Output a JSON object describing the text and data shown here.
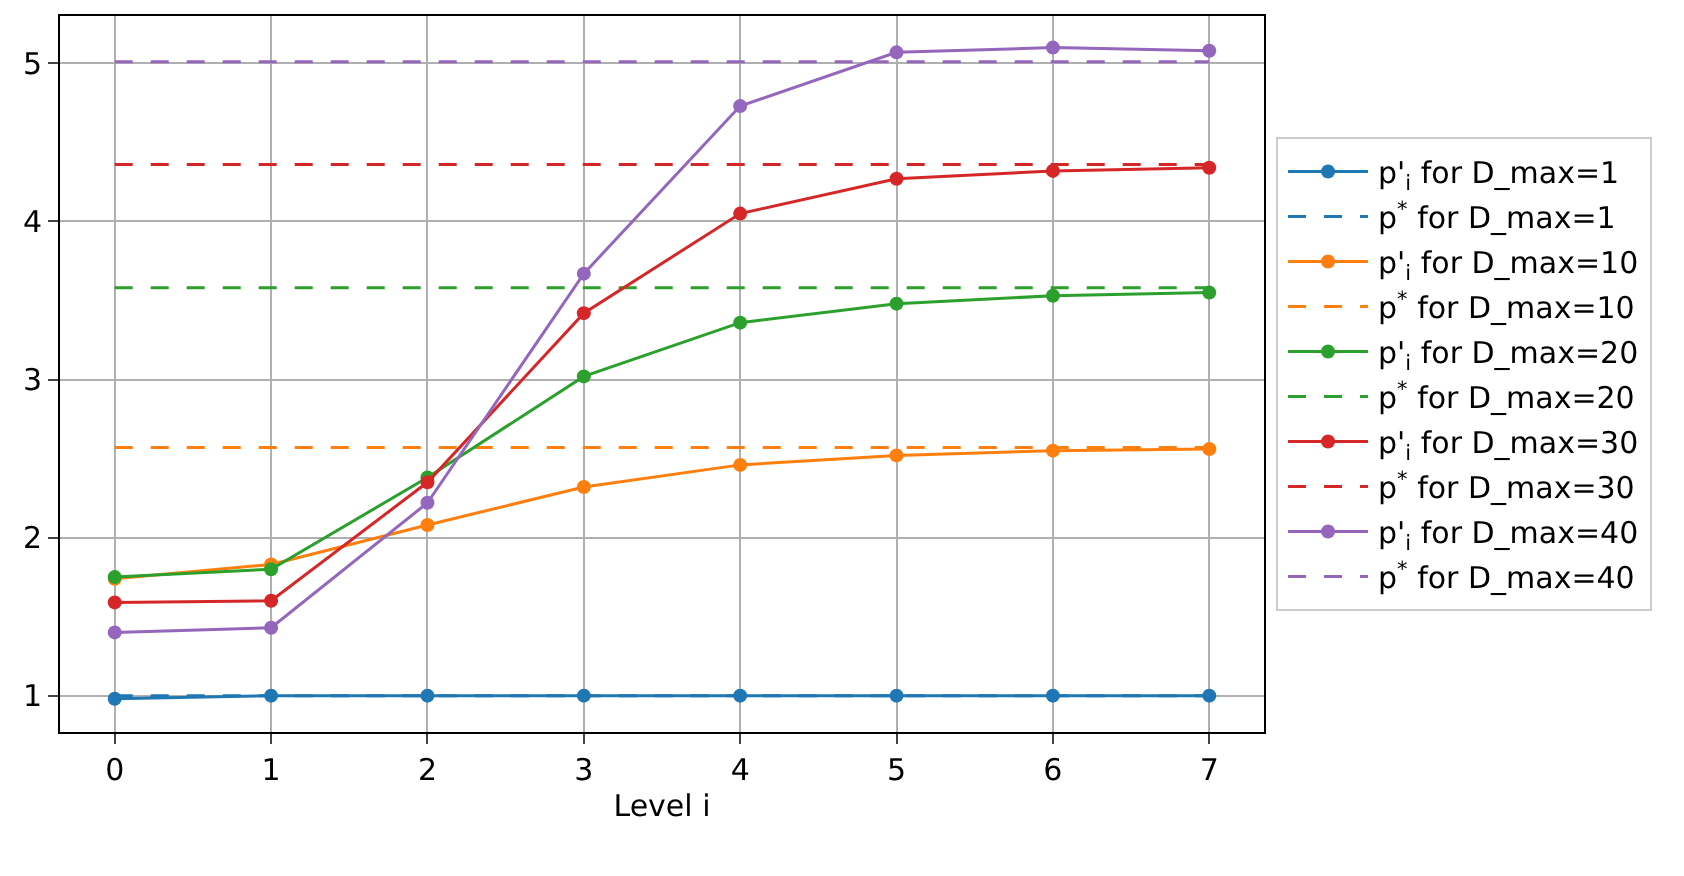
{
  "chart_data": {
    "type": "line",
    "xlabel": "Level i",
    "x": [
      0,
      1,
      2,
      3,
      4,
      5,
      6,
      7
    ],
    "xlim": [
      -0.35,
      7.35
    ],
    "xticks": [
      0,
      1,
      2,
      3,
      4,
      5,
      6,
      7
    ],
    "ylim": [
      0.77,
      5.3
    ],
    "yticks": [
      1,
      2,
      3,
      4,
      5
    ],
    "grid": true,
    "legend": "right",
    "series": [
      {
        "name": "p'$_{i}$ for D_max=1",
        "color": "#1f77b4",
        "marker": "circle",
        "line_style": "solid",
        "values": [
          0.98,
          1.0,
          1.0,
          1.0,
          1.0,
          1.0,
          1.0,
          1.0
        ]
      },
      {
        "name": "p$^{*}$ for D_max=1",
        "color": "#1f77b4",
        "marker": "none",
        "line_style": "dashed",
        "values": [
          1.0,
          1.0,
          1.0,
          1.0,
          1.0,
          1.0,
          1.0,
          1.0
        ]
      },
      {
        "name": "p'$_{i}$ for D_max=10",
        "color": "#ff7f0e",
        "marker": "circle",
        "line_style": "solid",
        "values": [
          1.74,
          1.83,
          2.08,
          2.32,
          2.46,
          2.52,
          2.55,
          2.56
        ]
      },
      {
        "name": "p$^{*}$ for D_max=10",
        "color": "#ff7f0e",
        "marker": "none",
        "line_style": "dashed",
        "values": [
          2.57,
          2.57,
          2.57,
          2.57,
          2.57,
          2.57,
          2.57,
          2.57
        ]
      },
      {
        "name": "p'$_{i}$ for D_max=20",
        "color": "#2ca02c",
        "marker": "circle",
        "line_style": "solid",
        "values": [
          1.75,
          1.8,
          2.38,
          3.02,
          3.36,
          3.48,
          3.53,
          3.55
        ]
      },
      {
        "name": "p$^{*}$ for D_max=20",
        "color": "#2ca02c",
        "marker": "none",
        "line_style": "dashed",
        "values": [
          3.58,
          3.58,
          3.58,
          3.58,
          3.58,
          3.58,
          3.58,
          3.58
        ]
      },
      {
        "name": "p'$_{i}$ for D_max=30",
        "color": "#d62728",
        "marker": "circle",
        "line_style": "solid",
        "values": [
          1.59,
          1.6,
          2.35,
          3.42,
          4.05,
          4.27,
          4.32,
          4.34
        ]
      },
      {
        "name": "p$^{*}$ for D_max=30",
        "color": "#d62728",
        "marker": "none",
        "line_style": "dashed",
        "values": [
          4.36,
          4.36,
          4.36,
          4.36,
          4.36,
          4.36,
          4.36,
          4.36
        ]
      },
      {
        "name": "p'$_{i}$ for D_max=40",
        "color": "#9467bd",
        "marker": "circle",
        "line_style": "solid",
        "values": [
          1.4,
          1.43,
          2.22,
          3.67,
          4.73,
          5.07,
          5.1,
          5.08
        ]
      },
      {
        "name": "p$^{*}$ for D_max=40",
        "color": "#9467bd",
        "marker": "none",
        "line_style": "dashed",
        "values": [
          5.01,
          5.01,
          5.01,
          5.01,
          5.01,
          5.01,
          5.01,
          5.01
        ]
      }
    ]
  }
}
